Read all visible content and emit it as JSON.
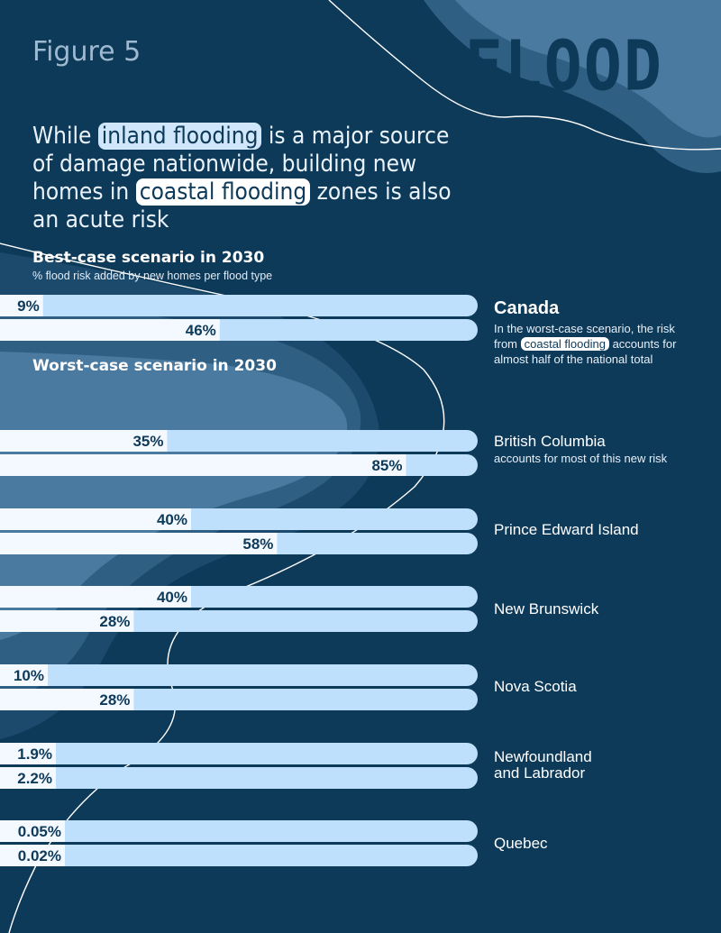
{
  "figure_label": "Figure 5",
  "brand": "FLOOD",
  "headline": {
    "part1": "While ",
    "inland": "inland flooding",
    "part2": " is a major source of damage nationwide, building new homes in ",
    "coastal": "coastal flooding",
    "part3": " zones is also an acute risk"
  },
  "best_title": "Best-case scenario in 2030",
  "best_subtitle": "% flood risk added by new homes per flood type",
  "worst_title": "Worst-case scenario in 2030",
  "canada_note": {
    "part1": "In the worst-case scenario, the risk from ",
    "pill": "coastal flooding",
    "part2": " accounts for almost half of the national total"
  },
  "bc_note": "accounts for most of this new risk",
  "colors": {
    "background": "#0e3a59",
    "bar_total": "#bfe0fd",
    "bar_coastal": "#f4f9ff",
    "text_dark": "#0e3a59",
    "wave_mid": "#2f5f83",
    "wave_light": "#4b7aa0"
  },
  "chart_data": {
    "type": "bar",
    "orientation": "horizontal",
    "xlim": [
      0,
      100
    ],
    "categories": [
      "Canada",
      "British Columbia",
      "Prince Edward Island",
      "New Brunswick",
      "Nova Scotia",
      "Newfoundland and Labrador",
      "Quebec"
    ],
    "series": [
      {
        "name": "Best-case scenario in 2030",
        "values": [
          9,
          35,
          40,
          40,
          10,
          1.9,
          0.05
        ],
        "labels": [
          "9%",
          "35%",
          "40%",
          "40%",
          "10%",
          "1.9%",
          "0.05%"
        ]
      },
      {
        "name": "Worst-case scenario in 2030",
        "values": [
          46,
          85,
          58,
          28,
          28,
          2.2,
          0.02
        ],
        "labels": [
          "46%",
          "85%",
          "58%",
          "28%",
          "28%",
          "2.2%",
          "0.02%"
        ]
      }
    ]
  }
}
